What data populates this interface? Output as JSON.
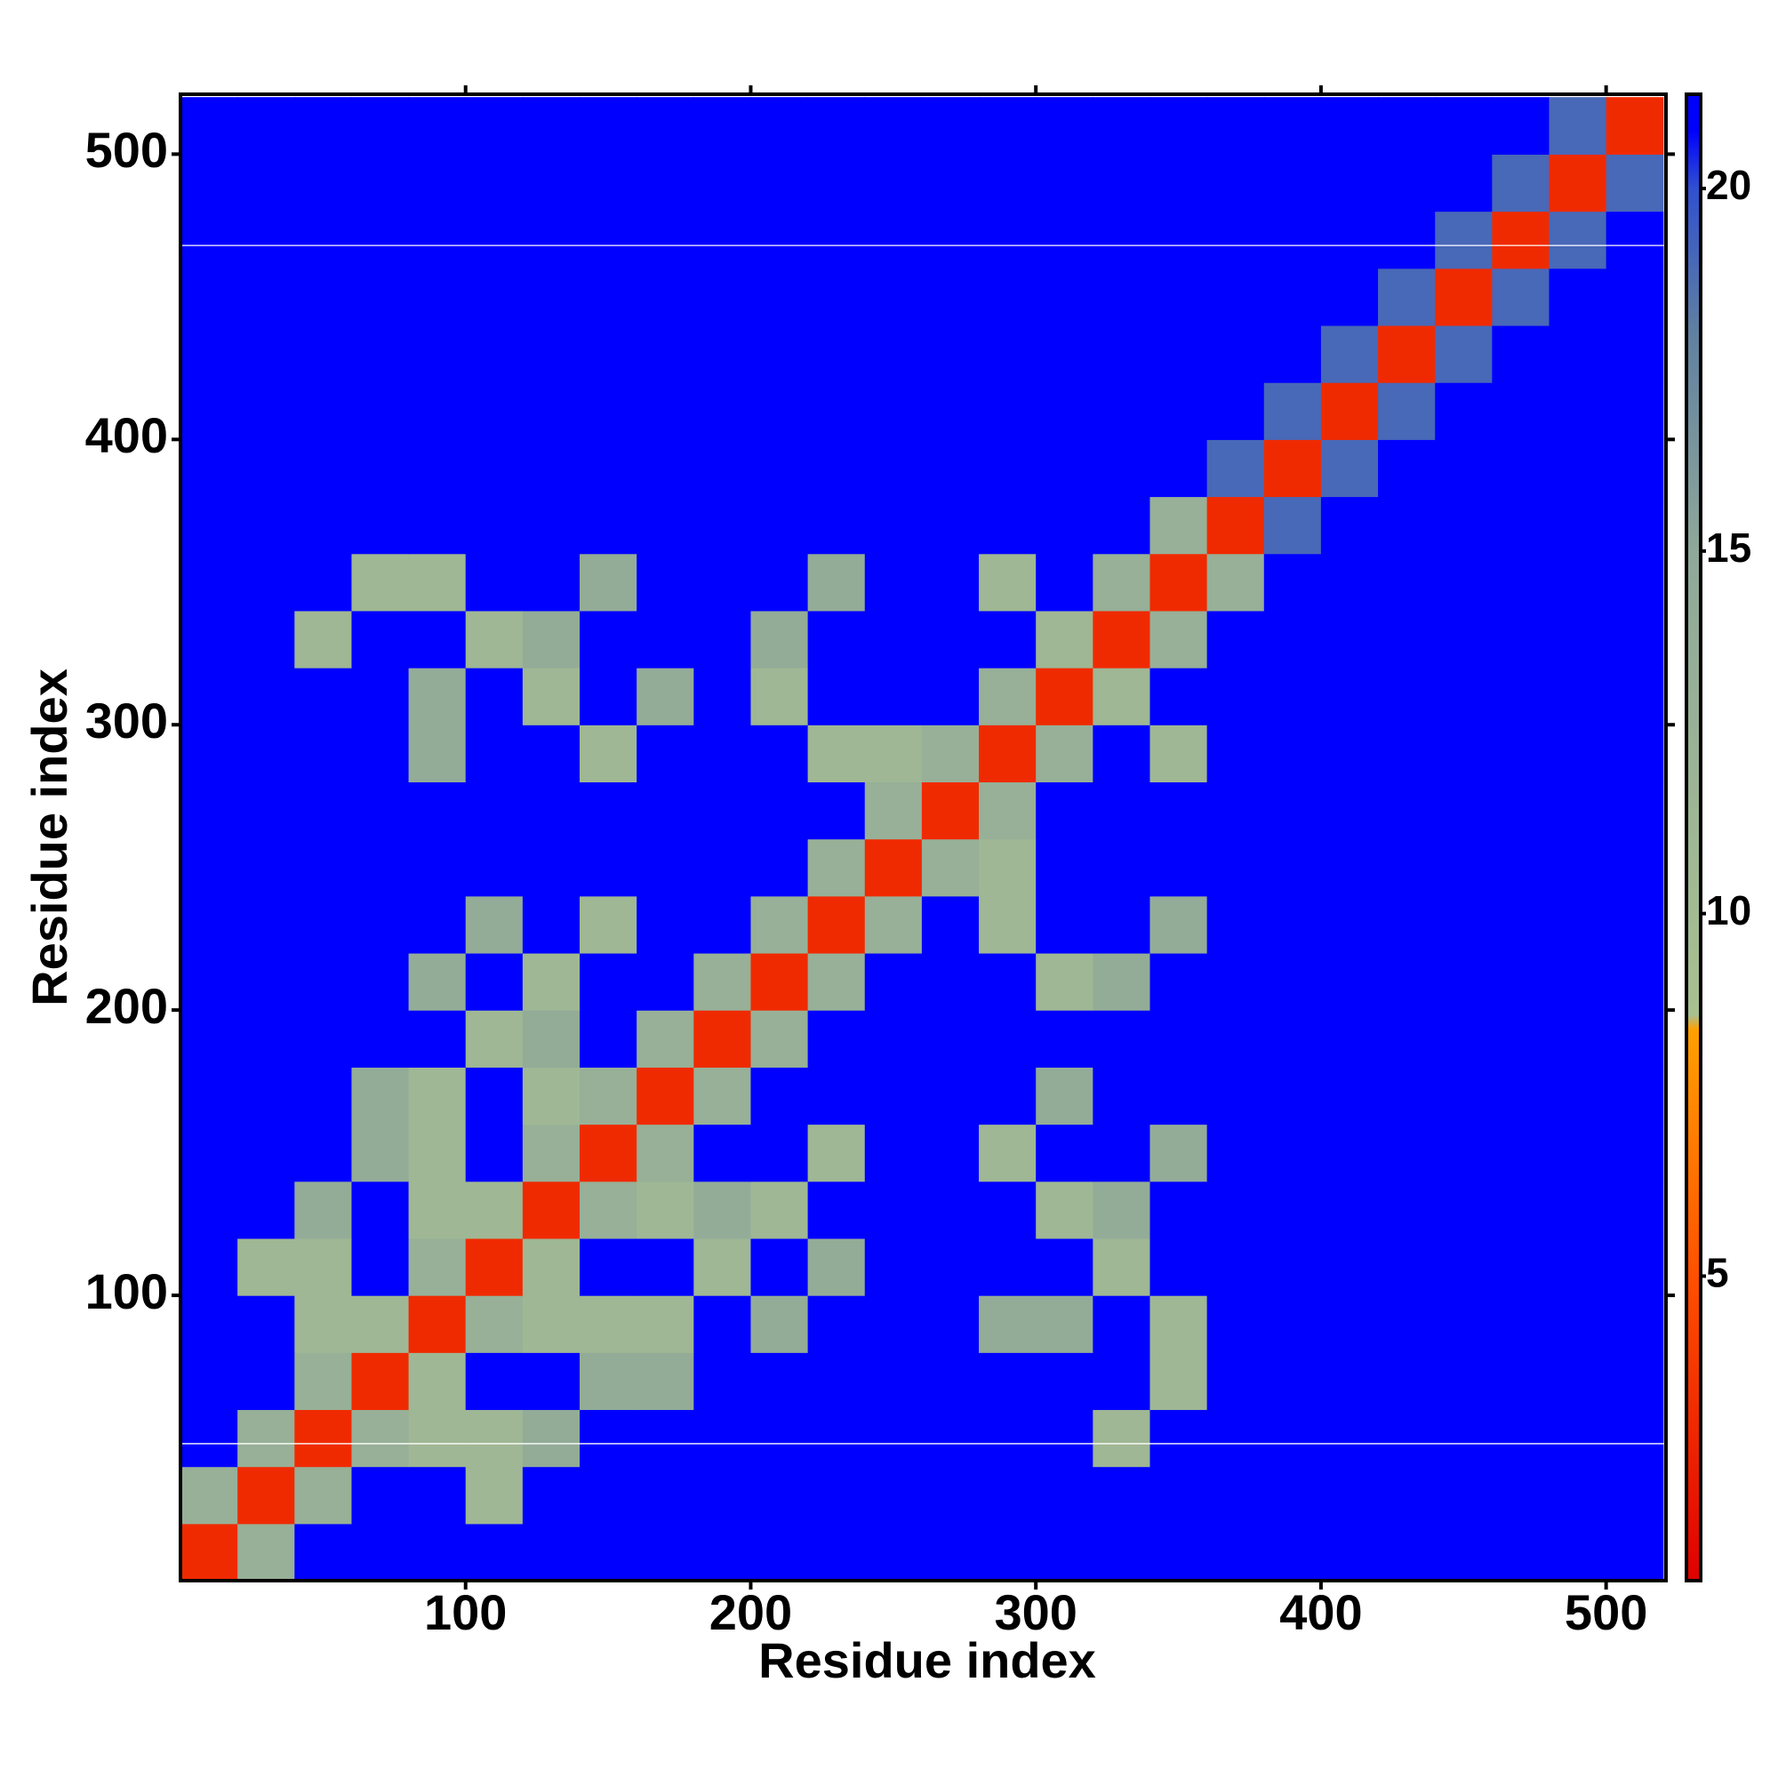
{
  "chart_data": {
    "type": "heatmap",
    "xlabel": "Residue index",
    "ylabel": "Residue index",
    "xlim": [
      0,
      521
    ],
    "ylim": [
      0,
      521
    ],
    "xticks": [
      100,
      200,
      300,
      400,
      500
    ],
    "yticks": [
      100,
      200,
      300,
      400,
      500
    ],
    "xbins": [
      0,
      20,
      40,
      60,
      80,
      100,
      120,
      140,
      160,
      180,
      200,
      220,
      240,
      260,
      280,
      300,
      320,
      340,
      360,
      380,
      400,
      420,
      440,
      460,
      480,
      500,
      520
    ],
    "ybins": [
      0,
      20,
      40,
      60,
      80,
      100,
      120,
      140,
      160,
      180,
      200,
      220,
      240,
      260,
      280,
      300,
      320,
      340,
      360,
      380,
      400,
      420,
      440,
      460,
      480,
      500,
      520
    ],
    "values": [
      [
        3,
        13,
        21,
        21,
        21,
        21,
        21,
        21,
        21,
        21,
        21,
        21,
        21,
        21,
        21,
        21,
        21,
        21,
        21,
        21,
        21,
        21,
        21,
        21,
        21,
        21
      ],
      [
        13,
        3,
        13,
        21,
        21,
        11,
        21,
        21,
        21,
        21,
        21,
        21,
        21,
        21,
        21,
        21,
        21,
        21,
        21,
        21,
        21,
        21,
        21,
        21,
        21,
        21
      ],
      [
        21,
        13,
        3,
        13,
        11,
        11,
        14,
        21,
        21,
        21,
        21,
        21,
        21,
        21,
        21,
        21,
        11,
        21,
        21,
        21,
        21,
        21,
        21,
        21,
        21,
        21
      ],
      [
        21,
        21,
        13,
        3,
        11,
        21,
        21,
        14,
        14,
        21,
        21,
        21,
        21,
        21,
        21,
        21,
        21,
        11,
        21,
        21,
        21,
        21,
        21,
        21,
        21,
        21
      ],
      [
        21,
        21,
        11,
        11,
        3,
        13,
        11,
        11,
        11,
        21,
        14,
        21,
        21,
        21,
        14,
        14,
        21,
        11,
        21,
        21,
        21,
        21,
        21,
        21,
        21,
        21
      ],
      [
        21,
        11,
        11,
        21,
        13,
        3,
        11,
        21,
        21,
        11,
        21,
        14,
        21,
        21,
        21,
        21,
        11,
        21,
        21,
        21,
        21,
        21,
        21,
        21,
        21,
        21
      ],
      [
        21,
        21,
        14,
        21,
        11,
        11,
        3,
        13,
        11,
        14,
        11,
        21,
        21,
        21,
        21,
        11,
        14,
        21,
        21,
        21,
        21,
        21,
        21,
        21,
        21,
        21
      ],
      [
        21,
        21,
        21,
        14,
        11,
        21,
        13,
        3,
        13,
        21,
        21,
        11,
        21,
        21,
        11,
        21,
        21,
        14,
        21,
        21,
        21,
        21,
        21,
        21,
        21,
        21
      ],
      [
        21,
        21,
        21,
        14,
        11,
        21,
        11,
        13,
        3,
        13,
        21,
        21,
        21,
        21,
        21,
        14,
        21,
        21,
        21,
        21,
        21,
        21,
        21,
        21,
        21,
        21
      ],
      [
        21,
        21,
        21,
        21,
        21,
        11,
        14,
        21,
        13,
        3,
        13,
        21,
        21,
        21,
        21,
        21,
        21,
        21,
        21,
        21,
        21,
        21,
        21,
        21,
        21,
        21
      ],
      [
        21,
        21,
        21,
        21,
        14,
        21,
        11,
        21,
        21,
        13,
        3,
        13,
        21,
        21,
        21,
        11,
        14,
        21,
        21,
        21,
        21,
        21,
        21,
        21,
        21,
        21
      ],
      [
        21,
        21,
        21,
        21,
        21,
        14,
        21,
        11,
        21,
        21,
        13,
        3,
        13,
        21,
        11,
        21,
        21,
        14,
        21,
        21,
        21,
        21,
        21,
        21,
        21,
        21
      ],
      [
        21,
        21,
        21,
        21,
        21,
        21,
        21,
        21,
        21,
        21,
        21,
        13,
        3,
        13,
        11,
        21,
        21,
        21,
        21,
        21,
        21,
        21,
        21,
        21,
        21,
        21
      ],
      [
        21,
        21,
        21,
        21,
        21,
        21,
        21,
        21,
        21,
        21,
        21,
        21,
        13,
        3,
        13,
        21,
        21,
        21,
        21,
        21,
        21,
        21,
        21,
        21,
        21,
        21
      ],
      [
        21,
        21,
        21,
        21,
        14,
        21,
        21,
        11,
        21,
        21,
        21,
        11,
        11,
        13,
        3,
        13,
        21,
        11,
        21,
        21,
        21,
        21,
        21,
        21,
        21,
        21
      ],
      [
        21,
        21,
        21,
        21,
        14,
        21,
        11,
        21,
        14,
        21,
        11,
        21,
        21,
        21,
        13,
        3,
        11,
        21,
        21,
        21,
        21,
        21,
        21,
        21,
        21,
        21
      ],
      [
        21,
        21,
        11,
        21,
        21,
        11,
        14,
        21,
        21,
        21,
        14,
        21,
        21,
        21,
        21,
        11,
        3,
        13,
        21,
        21,
        21,
        21,
        21,
        21,
        21,
        21
      ],
      [
        21,
        21,
        21,
        11,
        11,
        21,
        21,
        14,
        21,
        21,
        21,
        14,
        21,
        21,
        11,
        21,
        13,
        3,
        13,
        21,
        21,
        21,
        21,
        21,
        21,
        21
      ],
      [
        21,
        21,
        21,
        21,
        21,
        21,
        21,
        21,
        21,
        21,
        21,
        21,
        21,
        21,
        21,
        21,
        21,
        13,
        3,
        19,
        21,
        21,
        21,
        21,
        21,
        21
      ],
      [
        21,
        21,
        21,
        21,
        21,
        21,
        21,
        21,
        21,
        21,
        21,
        21,
        21,
        21,
        21,
        21,
        21,
        21,
        19,
        3,
        19,
        21,
        21,
        21,
        21,
        21
      ],
      [
        21,
        21,
        21,
        21,
        21,
        21,
        21,
        21,
        21,
        21,
        21,
        21,
        21,
        21,
        21,
        21,
        21,
        21,
        21,
        19,
        3,
        19,
        21,
        21,
        21,
        21
      ],
      [
        21,
        21,
        21,
        21,
        21,
        21,
        21,
        21,
        21,
        21,
        21,
        21,
        21,
        21,
        21,
        21,
        21,
        21,
        21,
        21,
        19,
        3,
        19,
        21,
        21,
        21
      ],
      [
        21,
        21,
        21,
        21,
        21,
        21,
        21,
        21,
        21,
        21,
        21,
        21,
        21,
        21,
        21,
        21,
        21,
        21,
        21,
        21,
        21,
        19,
        3,
        19,
        21,
        21
      ],
      [
        21,
        21,
        21,
        21,
        21,
        21,
        21,
        21,
        21,
        21,
        21,
        21,
        21,
        21,
        21,
        21,
        21,
        21,
        21,
        21,
        21,
        21,
        19,
        3,
        19,
        21
      ],
      [
        21,
        21,
        21,
        21,
        21,
        21,
        21,
        21,
        21,
        21,
        21,
        21,
        21,
        21,
        21,
        21,
        21,
        21,
        21,
        21,
        21,
        21,
        21,
        19,
        3,
        19
      ],
      [
        21,
        21,
        21,
        21,
        21,
        21,
        21,
        21,
        21,
        21,
        21,
        21,
        21,
        21,
        21,
        21,
        21,
        21,
        21,
        21,
        21,
        21,
        21,
        21,
        19,
        3
      ]
    ],
    "hlines": [
      48,
      468
    ],
    "hline_color": "#ffffff",
    "clim": [
      0.8,
      21.3
    ],
    "cticks": [
      5,
      10,
      15,
      20
    ],
    "colorscale": [
      {
        "value": 0.8,
        "color": "#e00000"
      },
      {
        "value": 5,
        "color": "#ff5000"
      },
      {
        "value": 8.4,
        "color": "#ffa000"
      },
      {
        "value": 8.6,
        "color": "#a8c090"
      },
      {
        "value": 15,
        "color": "#8fa89a"
      },
      {
        "value": 18,
        "color": "#6080a0"
      },
      {
        "value": 20,
        "color": "#3050d0"
      },
      {
        "value": 20.8,
        "color": "#0000ff"
      },
      {
        "value": 21.3,
        "color": "#0000ff"
      }
    ]
  }
}
